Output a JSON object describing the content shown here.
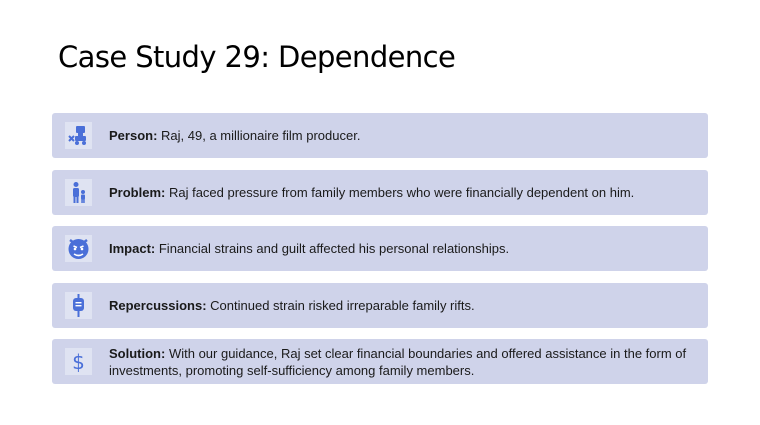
{
  "slide": {
    "title": "Case Study 29: Dependence"
  },
  "rows": [
    {
      "label": "Person:",
      "text": "Raj, 49, a millionaire film producer.",
      "icon": "film-producer-icon"
    },
    {
      "label": "Problem:",
      "text": "Raj faced pressure from family members who were financially dependent on him.",
      "icon": "parent-child-icon"
    },
    {
      "label": "Impact:",
      "text": "Financial strains and guilt affected his personal relationships.",
      "icon": "angry-face-icon"
    },
    {
      "label": "Repercussions:",
      "text": "Continued strain risked irreparable family rifts.",
      "icon": "iv-bag-icon"
    },
    {
      "label": "Solution:",
      "text": "With our guidance, Raj set clear financial boundaries and offered assistance in the form of investments, promoting self-sufficiency among family members.",
      "icon": "dollar-sign-icon"
    }
  ],
  "colors": {
    "row_background": "#cfd3ea",
    "icon_background": "#dfe3f2",
    "icon_accent": "#4a6fd8"
  }
}
